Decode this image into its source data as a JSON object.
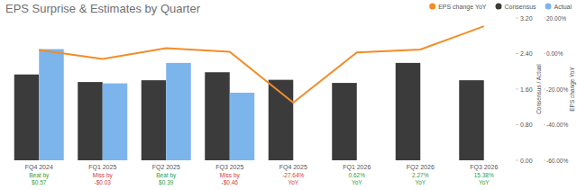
{
  "chart_data": {
    "type": "bar",
    "title": "EPS Surprise & Estimates by Quarter",
    "categories": [
      "FQ4 2024",
      "FQ1 2025",
      "FQ2 2025",
      "FQ3 2025",
      "FQ4 2025",
      "FQ1 2026",
      "FQ2 2026",
      "FQ3 2026"
    ],
    "series": [
      {
        "name": "EPS change YoY",
        "type": "line",
        "axis": "y2",
        "color": "#f28c28",
        "marker": "none",
        "line_style": "solid",
        "values": [
          2.0,
          -3.0,
          3.0,
          1.0,
          -27.64,
          0.62,
          2.27,
          15.38
        ]
      },
      {
        "name": "Consensus",
        "type": "bar",
        "color": "#3b3b3b",
        "values": [
          1.93,
          1.76,
          1.8,
          1.98,
          1.81,
          1.74,
          2.19,
          1.8
        ]
      },
      {
        "name": "Actual",
        "type": "bar",
        "color": "#7cb5ec",
        "values": [
          2.5,
          1.73,
          2.19,
          1.52,
          null,
          null,
          null,
          null
        ]
      }
    ],
    "ylabel": "Consensus / Actual",
    "y2label": "EPS change YoY",
    "ylim": [
      0,
      3.2
    ],
    "yticks": [
      {
        "value": 0,
        "label": "0.00"
      },
      {
        "value": 0.8,
        "label": "0.80"
      },
      {
        "value": 1.6,
        "label": "1.60"
      },
      {
        "value": 2.4,
        "label": "2.40"
      },
      {
        "value": 3.2,
        "label": "3.20"
      }
    ],
    "y2lim": [
      -60,
      20
    ],
    "y2ticks": [
      {
        "value": -60,
        "label": "-60.00%"
      },
      {
        "value": -40,
        "label": "-40.00%"
      },
      {
        "value": -20,
        "label": "-20.00%"
      },
      {
        "value": 0,
        "label": "0.00%"
      },
      {
        "value": 20,
        "label": "20.00%"
      }
    ],
    "annotations": [
      {
        "text": [
          "Beat by",
          "$0.57"
        ],
        "color": "#2e9e3e"
      },
      {
        "text": [
          "Miss by",
          "-$0.03"
        ],
        "color": "#d23c3c"
      },
      {
        "text": [
          "Beat by",
          "$0.39"
        ],
        "color": "#2e9e3e"
      },
      {
        "text": [
          "Miss by",
          "-$0.46"
        ],
        "color": "#d23c3c"
      },
      {
        "text": [
          "-27.64%",
          "YoY"
        ],
        "color": "#d23c3c"
      },
      {
        "text": [
          "0.62%",
          "YoY"
        ],
        "color": "#2e9e3e"
      },
      {
        "text": [
          "2.27%",
          "YoY"
        ],
        "color": "#2e9e3e"
      },
      {
        "text": [
          "15.38%",
          "YoY"
        ],
        "color": "#2e9e3e"
      }
    ],
    "legend": "top-right",
    "grid": false
  }
}
